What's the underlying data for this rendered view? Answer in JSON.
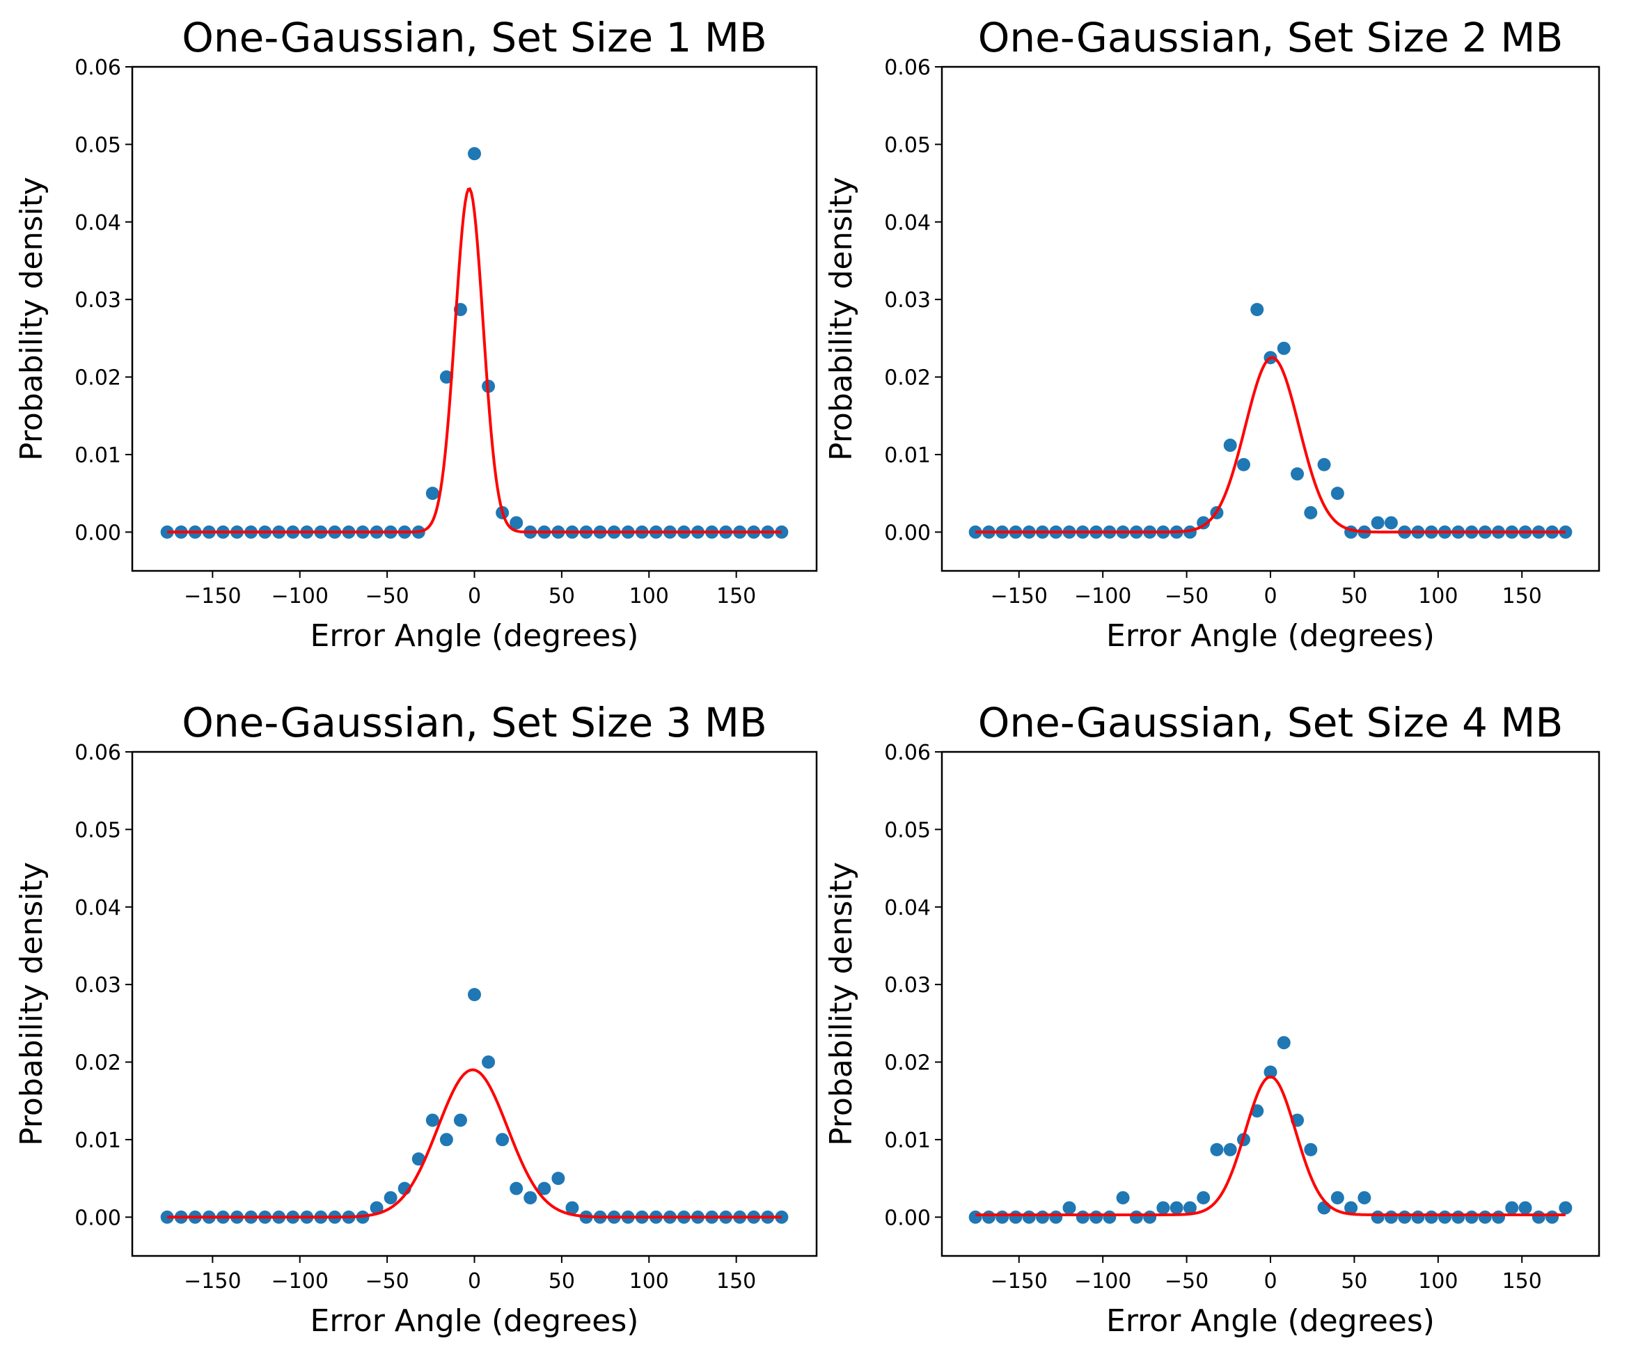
{
  "colors": {
    "points": "#1f77b4",
    "fit": "#ff0000",
    "axes": "#000000",
    "background": "#ffffff"
  },
  "chart_data": [
    {
      "type": "scatter",
      "title": "One-Gaussian, Set Size 1 MB",
      "xlabel": "Error Angle (degrees)",
      "ylabel": "Probability density",
      "xlim": [
        -196,
        196
      ],
      "ylim": [
        -0.005,
        0.06
      ],
      "xticks": [
        -150,
        -100,
        -50,
        0,
        50,
        100,
        150
      ],
      "xtick_labels": [
        "−150",
        "−100",
        "−50",
        "0",
        "50",
        "100",
        "150"
      ],
      "yticks": [
        0,
        0.01,
        0.02,
        0.03,
        0.04,
        0.05,
        0.06
      ],
      "ytick_labels": [
        "0.00",
        "0.01",
        "0.02",
        "0.03",
        "0.04",
        "0.05",
        "0.06"
      ],
      "grid": false,
      "series": [
        {
          "kind": "points",
          "x": [
            -176,
            -168,
            -160,
            -152,
            -144,
            -136,
            -128,
            -120,
            -112,
            -104,
            -96,
            -88,
            -80,
            -72,
            -64,
            -56,
            -48,
            -40,
            -32,
            -24,
            -16,
            -8,
            0,
            8,
            16,
            24,
            32,
            40,
            48,
            56,
            64,
            72,
            80,
            88,
            96,
            104,
            112,
            120,
            128,
            136,
            144,
            152,
            160,
            168,
            176
          ],
          "y": [
            0,
            0,
            0,
            0,
            0,
            0,
            0,
            0,
            0,
            0,
            0,
            0,
            0,
            0,
            0,
            0,
            0,
            0,
            0,
            0.005,
            0.02,
            0.0287,
            0.0488,
            0.0188,
            0.0025,
            0.0012,
            0,
            0,
            0,
            0,
            0,
            0,
            0,
            0,
            0,
            0,
            0,
            0,
            0,
            0,
            0,
            0,
            0,
            0,
            0
          ]
        },
        {
          "kind": "gaussian-fit",
          "amplitude": 0.0443,
          "mean": -3,
          "sd": 8,
          "baseline": 0
        }
      ]
    },
    {
      "type": "scatter",
      "title": "One-Gaussian, Set Size 2 MB",
      "xlabel": "Error Angle (degrees)",
      "ylabel": "Probability density",
      "xlim": [
        -196,
        196
      ],
      "ylim": [
        -0.005,
        0.06
      ],
      "xticks": [
        -150,
        -100,
        -50,
        0,
        50,
        100,
        150
      ],
      "xtick_labels": [
        "−150",
        "−100",
        "−50",
        "0",
        "50",
        "100",
        "150"
      ],
      "yticks": [
        0,
        0.01,
        0.02,
        0.03,
        0.04,
        0.05,
        0.06
      ],
      "ytick_labels": [
        "0.00",
        "0.01",
        "0.02",
        "0.03",
        "0.04",
        "0.05",
        "0.06"
      ],
      "grid": false,
      "series": [
        {
          "kind": "points",
          "x": [
            -176,
            -168,
            -160,
            -152,
            -144,
            -136,
            -128,
            -120,
            -112,
            -104,
            -96,
            -88,
            -80,
            -72,
            -64,
            -56,
            -48,
            -40,
            -32,
            -24,
            -16,
            -8,
            0,
            8,
            16,
            24,
            32,
            40,
            48,
            56,
            64,
            72,
            80,
            88,
            96,
            104,
            112,
            120,
            128,
            136,
            144,
            152,
            160,
            168,
            176
          ],
          "y": [
            0,
            0,
            0,
            0,
            0,
            0,
            0,
            0,
            0,
            0,
            0,
            0,
            0,
            0,
            0,
            0,
            0,
            0.0012,
            0.0025,
            0.0112,
            0.0087,
            0.0287,
            0.0225,
            0.0237,
            0.0075,
            0.0025,
            0.0087,
            0.005,
            0,
            0,
            0.0012,
            0.0012,
            0,
            0,
            0,
            0,
            0,
            0,
            0,
            0,
            0,
            0,
            0,
            0,
            0
          ]
        },
        {
          "kind": "gaussian-fit",
          "amplitude": 0.0225,
          "mean": 1,
          "sd": 16,
          "baseline": 0
        }
      ]
    },
    {
      "type": "scatter",
      "title": "One-Gaussian, Set Size 3 MB",
      "xlabel": "Error Angle (degrees)",
      "ylabel": "Probability density",
      "xlim": [
        -196,
        196
      ],
      "ylim": [
        -0.005,
        0.06
      ],
      "xticks": [
        -150,
        -100,
        -50,
        0,
        50,
        100,
        150
      ],
      "xtick_labels": [
        "−150",
        "−100",
        "−50",
        "0",
        "50",
        "100",
        "150"
      ],
      "yticks": [
        0,
        0.01,
        0.02,
        0.03,
        0.04,
        0.05,
        0.06
      ],
      "ytick_labels": [
        "0.00",
        "0.01",
        "0.02",
        "0.03",
        "0.04",
        "0.05",
        "0.06"
      ],
      "grid": false,
      "series": [
        {
          "kind": "points",
          "x": [
            -176,
            -168,
            -160,
            -152,
            -144,
            -136,
            -128,
            -120,
            -112,
            -104,
            -96,
            -88,
            -80,
            -72,
            -64,
            -56,
            -48,
            -40,
            -32,
            -24,
            -16,
            -8,
            0,
            8,
            16,
            24,
            32,
            40,
            48,
            56,
            64,
            72,
            80,
            88,
            96,
            104,
            112,
            120,
            128,
            136,
            144,
            152,
            160,
            168,
            176
          ],
          "y": [
            0,
            0,
            0,
            0,
            0,
            0,
            0,
            0,
            0,
            0,
            0,
            0,
            0,
            0,
            0,
            0.0012,
            0.0025,
            0.0037,
            0.0075,
            0.0125,
            0.01,
            0.0125,
            0.0287,
            0.02,
            0.01,
            0.0037,
            0.0025,
            0.0037,
            0.005,
            0.0012,
            0,
            0,
            0,
            0,
            0,
            0,
            0,
            0,
            0,
            0,
            0,
            0,
            0,
            0,
            0
          ]
        },
        {
          "kind": "gaussian-fit",
          "amplitude": 0.019,
          "mean": -1,
          "sd": 20,
          "baseline": 0
        }
      ]
    },
    {
      "type": "scatter",
      "title": "One-Gaussian, Set Size 4 MB",
      "xlabel": "Error Angle (degrees)",
      "ylabel": "Probability density",
      "xlim": [
        -196,
        196
      ],
      "ylim": [
        -0.005,
        0.06
      ],
      "xticks": [
        -150,
        -100,
        -50,
        0,
        50,
        100,
        150
      ],
      "xtick_labels": [
        "−150",
        "−100",
        "−50",
        "0",
        "50",
        "100",
        "150"
      ],
      "yticks": [
        0,
        0.01,
        0.02,
        0.03,
        0.04,
        0.05,
        0.06
      ],
      "ytick_labels": [
        "0.00",
        "0.01",
        "0.02",
        "0.03",
        "0.04",
        "0.05",
        "0.06"
      ],
      "grid": false,
      "series": [
        {
          "kind": "points",
          "x": [
            -176,
            -168,
            -160,
            -152,
            -144,
            -136,
            -128,
            -120,
            -112,
            -104,
            -96,
            -88,
            -80,
            -72,
            -64,
            -56,
            -48,
            -40,
            -32,
            -24,
            -16,
            -8,
            0,
            8,
            16,
            24,
            32,
            40,
            48,
            56,
            64,
            72,
            80,
            88,
            96,
            104,
            112,
            120,
            128,
            136,
            144,
            152,
            160,
            168,
            176
          ],
          "y": [
            0,
            0,
            0,
            0,
            0,
            0,
            0,
            0.0012,
            0,
            0,
            0,
            0.0025,
            0,
            0,
            0.0012,
            0.0012,
            0.0012,
            0.0025,
            0.0087,
            0.0087,
            0.01,
            0.0137,
            0.0187,
            0.0225,
            0.0125,
            0.0087,
            0.0012,
            0.0025,
            0.0012,
            0.0025,
            0,
            0,
            0,
            0,
            0,
            0,
            0,
            0,
            0,
            0,
            0.0012,
            0.0012,
            0,
            0,
            0.0012
          ]
        },
        {
          "kind": "gaussian-fit",
          "amplitude": 0.0178,
          "mean": 0,
          "sd": 15,
          "baseline": 0.0003
        }
      ]
    }
  ]
}
